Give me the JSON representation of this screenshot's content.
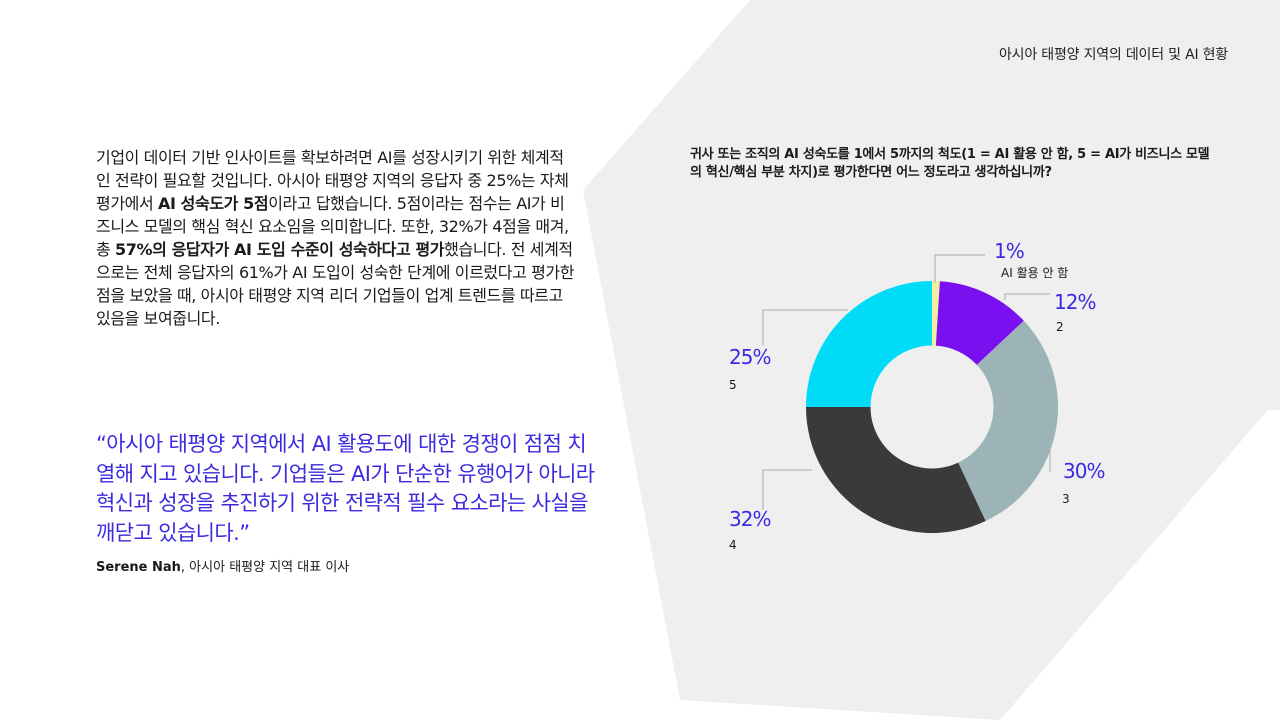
{
  "header": {
    "title": "아시아 태평양 지역의 데이터 및 AI 현황"
  },
  "body": {
    "p1": "기업이 데이터 기반 인사이트를 확보하려면 AI를 성장시키기 위한 체계적인 전략이 필요할 것입니다. 아시아 태평양 지역의 응답자 중 25%는 자체 평가에서 ",
    "b1": "AI 성숙도가 5점",
    "p2": "이라고 답했습니다. 5점이라는 점수는 AI가 비즈니스 모델의 핵심 혁신 요소임을 의미합니다. 또한, 32%가 4점을 매겨, 총 ",
    "b2": "57%의 응답자가 AI 도입 수준이 성숙하다고 평가",
    "p3": "했습니다. 전 세계적으로는 전체 응답자의 61%가 AI 도입이 성숙한 단계에 이르렀다고 평가한 점을 보았을 때, 아시아 태평양 지역 리더 기업들이 업계 트렌드를 따르고 있음을 보여줍니다."
  },
  "quote": {
    "text": "“아시아 태평양 지역에서 AI 활용도에 대한 경쟁이 점점 치열해 지고 있습니다. 기업들은 AI가 단순한 유행어가 아니라 혁신과 성장을 추진하기 위한 전략적 필수 요소라는 사실을 깨닫고 있습니다.”",
    "author": "Serene Nah",
    "role": ", 아시아  태평양 지역 대표 이사"
  },
  "chart_data": {
    "type": "pie",
    "title": "귀사 또는 조직의 AI 성숙도를 1에서 5까지의 척도(1 = AI 활용 안 함, 5 = AI가 비즈니스 모델의 혁신/핵심 부분 차지)로 평가한다면 어느 정도라고 생각하십니까?",
    "categories": [
      "1",
      "2",
      "3",
      "4",
      "5"
    ],
    "values": [
      1,
      12,
      30,
      32,
      25
    ],
    "value_labels": [
      "1%",
      "12%",
      "30%",
      "32%",
      "25%"
    ],
    "category_labels": [
      "AI 활용 안 함",
      "2",
      "3",
      "4",
      "5"
    ],
    "colors": [
      "#f2eea0",
      "#7a10f0",
      "#9cb4b8",
      "#3a3a3a",
      "#00dcf8"
    ],
    "hole": 0.4
  },
  "colors": {
    "accent": "#3d2ae0",
    "background_shape": "#efefef"
  }
}
